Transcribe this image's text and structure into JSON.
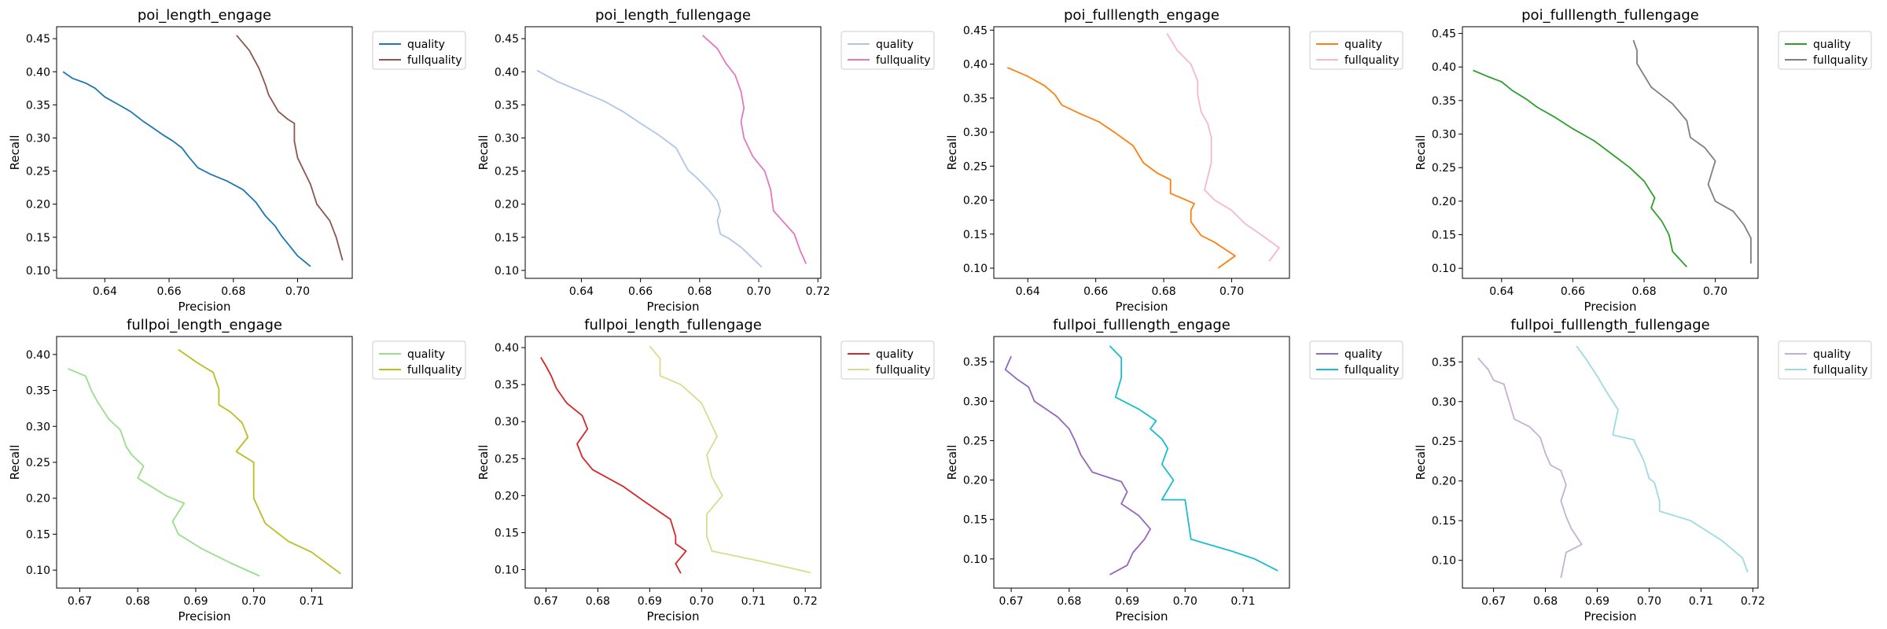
{
  "figure": {
    "background": "#ffffff"
  },
  "chart_data": [
    {
      "type": "line",
      "title": "poi_length_engage",
      "xlabel": "Precision",
      "ylabel": "Recall",
      "xlim": [
        0.625,
        0.717
      ],
      "ylim": [
        0.088,
        0.468
      ],
      "xticks": [
        0.64,
        0.66,
        0.68,
        0.7
      ],
      "xtick_labels": [
        "0.64",
        "0.66",
        "0.68",
        "0.70"
      ],
      "yticks": [
        0.1,
        0.15,
        0.2,
        0.25,
        0.3,
        0.35,
        0.4,
        0.45
      ],
      "ytick_labels": [
        "0.10",
        "0.15",
        "0.20",
        "0.25",
        "0.30",
        "0.35",
        "0.40",
        "0.45"
      ],
      "legend_position": "outside-top-right",
      "series": [
        {
          "name": "quality",
          "color": "#1f77b4",
          "x": [
            0.627,
            0.63,
            0.634,
            0.637,
            0.64,
            0.644,
            0.648,
            0.652,
            0.655,
            0.658,
            0.661,
            0.664,
            0.666,
            0.669,
            0.673,
            0.678,
            0.683,
            0.687,
            0.69,
            0.693,
            0.695,
            0.697,
            0.7,
            0.704
          ],
          "y": [
            0.4,
            0.39,
            0.383,
            0.375,
            0.362,
            0.351,
            0.34,
            0.325,
            0.315,
            0.305,
            0.296,
            0.285,
            0.272,
            0.255,
            0.245,
            0.235,
            0.222,
            0.203,
            0.182,
            0.167,
            0.152,
            0.14,
            0.122,
            0.106
          ]
        },
        {
          "name": "fullquality",
          "color": "#8c564b",
          "x": [
            0.681,
            0.685,
            0.688,
            0.69,
            0.691,
            0.694,
            0.697,
            0.699,
            0.699,
            0.7,
            0.702,
            0.704,
            0.706,
            0.71,
            0.712,
            0.714
          ],
          "y": [
            0.455,
            0.432,
            0.405,
            0.38,
            0.365,
            0.34,
            0.328,
            0.322,
            0.295,
            0.27,
            0.25,
            0.23,
            0.2,
            0.175,
            0.15,
            0.115
          ]
        }
      ]
    },
    {
      "type": "line",
      "title": "poi_length_fullengage",
      "xlabel": "Precision",
      "ylabel": "Recall",
      "xlim": [
        0.621,
        0.721
      ],
      "ylim": [
        0.088,
        0.468
      ],
      "xticks": [
        0.64,
        0.66,
        0.68,
        0.7,
        0.72
      ],
      "xtick_labels": [
        "0.64",
        "0.66",
        "0.68",
        "0.70",
        "0.72"
      ],
      "yticks": [
        0.1,
        0.15,
        0.2,
        0.25,
        0.3,
        0.35,
        0.4,
        0.45
      ],
      "ytick_labels": [
        "0.10",
        "0.15",
        "0.20",
        "0.25",
        "0.30",
        "0.35",
        "0.40",
        "0.45"
      ],
      "legend_position": "outside-top-right",
      "series": [
        {
          "name": "quality",
          "color": "#aec7e8",
          "x": [
            0.625,
            0.632,
            0.64,
            0.648,
            0.654,
            0.66,
            0.666,
            0.672,
            0.676,
            0.679,
            0.683,
            0.686,
            0.687,
            0.686,
            0.687,
            0.69,
            0.694,
            0.698,
            0.701
          ],
          "y": [
            0.402,
            0.385,
            0.37,
            0.355,
            0.34,
            0.322,
            0.305,
            0.285,
            0.252,
            0.24,
            0.222,
            0.205,
            0.19,
            0.175,
            0.155,
            0.148,
            0.135,
            0.118,
            0.105
          ]
        },
        {
          "name": "fullquality",
          "color": "#e377c2",
          "x": [
            0.681,
            0.686,
            0.689,
            0.692,
            0.694,
            0.695,
            0.694,
            0.695,
            0.698,
            0.702,
            0.704,
            0.705,
            0.708,
            0.712,
            0.714,
            0.716
          ],
          "y": [
            0.455,
            0.435,
            0.412,
            0.395,
            0.37,
            0.345,
            0.325,
            0.3,
            0.272,
            0.25,
            0.222,
            0.19,
            0.175,
            0.155,
            0.13,
            0.11
          ]
        }
      ]
    },
    {
      "type": "line",
      "title": "poi_fulllength_engage",
      "xlabel": "Precision",
      "ylabel": "Recall",
      "xlim": [
        0.63,
        0.717
      ],
      "ylim": [
        0.085,
        0.455
      ],
      "xticks": [
        0.64,
        0.66,
        0.68,
        0.7
      ],
      "xtick_labels": [
        "0.64",
        "0.66",
        "0.68",
        "0.70"
      ],
      "yticks": [
        0.1,
        0.15,
        0.2,
        0.25,
        0.3,
        0.35,
        0.4,
        0.45
      ],
      "ytick_labels": [
        "0.10",
        "0.15",
        "0.20",
        "0.25",
        "0.30",
        "0.35",
        "0.40",
        "0.45"
      ],
      "legend_position": "outside-top-right",
      "series": [
        {
          "name": "quality",
          "color": "#ff7f0e",
          "x": [
            0.634,
            0.64,
            0.645,
            0.648,
            0.65,
            0.655,
            0.661,
            0.666,
            0.671,
            0.674,
            0.678,
            0.682,
            0.682,
            0.689,
            0.688,
            0.688,
            0.691,
            0.695,
            0.701,
            0.696
          ],
          "y": [
            0.395,
            0.382,
            0.368,
            0.355,
            0.34,
            0.328,
            0.315,
            0.298,
            0.28,
            0.255,
            0.24,
            0.23,
            0.21,
            0.195,
            0.185,
            0.168,
            0.148,
            0.138,
            0.118,
            0.1
          ]
        },
        {
          "name": "fullquality",
          "color": "#f7b6d2",
          "x": [
            0.681,
            0.684,
            0.688,
            0.69,
            0.69,
            0.691,
            0.693,
            0.694,
            0.694,
            0.692,
            0.695,
            0.7,
            0.704,
            0.709,
            0.714,
            0.711
          ],
          "y": [
            0.445,
            0.42,
            0.4,
            0.375,
            0.355,
            0.33,
            0.312,
            0.292,
            0.255,
            0.215,
            0.2,
            0.185,
            0.165,
            0.148,
            0.13,
            0.11
          ]
        }
      ]
    },
    {
      "type": "line",
      "title": "poi_fulllength_fullengage",
      "xlabel": "Precision",
      "ylabel": "Recall",
      "xlim": [
        0.629,
        0.712
      ],
      "ylim": [
        0.085,
        0.46
      ],
      "xticks": [
        0.64,
        0.66,
        0.68,
        0.7
      ],
      "xtick_labels": [
        "0.64",
        "0.66",
        "0.68",
        "0.70"
      ],
      "yticks": [
        0.1,
        0.15,
        0.2,
        0.25,
        0.3,
        0.35,
        0.4,
        0.45
      ],
      "ytick_labels": [
        "0.10",
        "0.15",
        "0.20",
        "0.25",
        "0.30",
        "0.35",
        "0.40",
        "0.45"
      ],
      "legend_position": "outside-top-right",
      "series": [
        {
          "name": "quality",
          "color": "#2ca02c",
          "x": [
            0.632,
            0.636,
            0.64,
            0.643,
            0.647,
            0.65,
            0.655,
            0.66,
            0.666,
            0.671,
            0.676,
            0.68,
            0.683,
            0.682,
            0.685,
            0.687,
            0.688,
            0.692
          ],
          "y": [
            0.395,
            0.386,
            0.378,
            0.365,
            0.352,
            0.34,
            0.325,
            0.308,
            0.29,
            0.27,
            0.25,
            0.23,
            0.205,
            0.19,
            0.17,
            0.15,
            0.125,
            0.102
          ]
        },
        {
          "name": "fullquality",
          "color": "#7f7f7f",
          "x": [
            0.677,
            0.678,
            0.678,
            0.682,
            0.688,
            0.692,
            0.693,
            0.697,
            0.7,
            0.698,
            0.7,
            0.705,
            0.708,
            0.71,
            0.71
          ],
          "y": [
            0.44,
            0.425,
            0.405,
            0.37,
            0.345,
            0.32,
            0.295,
            0.28,
            0.26,
            0.225,
            0.2,
            0.185,
            0.165,
            0.145,
            0.107
          ]
        }
      ]
    },
    {
      "type": "line",
      "title": "fullpoi_length_engage",
      "xlabel": "Precision",
      "ylabel": "Recall",
      "xlim": [
        0.666,
        0.717
      ],
      "ylim": [
        0.075,
        0.425
      ],
      "xticks": [
        0.67,
        0.68,
        0.69,
        0.7,
        0.71
      ],
      "xtick_labels": [
        "0.67",
        "0.68",
        "0.69",
        "0.70",
        "0.71"
      ],
      "yticks": [
        0.1,
        0.15,
        0.2,
        0.25,
        0.3,
        0.35,
        0.4
      ],
      "ytick_labels": [
        "0.10",
        "0.15",
        "0.20",
        "0.25",
        "0.30",
        "0.35",
        "0.40"
      ],
      "legend_position": "outside-top-right",
      "series": [
        {
          "name": "quality",
          "color": "#98df8a",
          "x": [
            0.668,
            0.671,
            0.672,
            0.673,
            0.675,
            0.677,
            0.678,
            0.679,
            0.681,
            0.68,
            0.682,
            0.685,
            0.688,
            0.686,
            0.687,
            0.691,
            0.696,
            0.701
          ],
          "y": [
            0.38,
            0.37,
            0.35,
            0.335,
            0.31,
            0.295,
            0.272,
            0.26,
            0.245,
            0.228,
            0.218,
            0.203,
            0.193,
            0.168,
            0.15,
            0.13,
            0.11,
            0.092
          ]
        },
        {
          "name": "fullquality",
          "color": "#bcbd22",
          "x": [
            0.687,
            0.69,
            0.693,
            0.694,
            0.694,
            0.696,
            0.698,
            0.699,
            0.697,
            0.7,
            0.7,
            0.7,
            0.702,
            0.706,
            0.71,
            0.715
          ],
          "y": [
            0.407,
            0.39,
            0.375,
            0.352,
            0.33,
            0.32,
            0.305,
            0.285,
            0.265,
            0.25,
            0.222,
            0.2,
            0.165,
            0.14,
            0.125,
            0.095
          ]
        }
      ]
    },
    {
      "type": "line",
      "title": "fullpoi_length_fullengage",
      "xlabel": "Precision",
      "ylabel": "Recall",
      "xlim": [
        0.666,
        0.723
      ],
      "ylim": [
        0.075,
        0.415
      ],
      "xticks": [
        0.67,
        0.68,
        0.69,
        0.7,
        0.71,
        0.72
      ],
      "xtick_labels": [
        "0.67",
        "0.68",
        "0.69",
        "0.70",
        "0.71",
        "0.72"
      ],
      "yticks": [
        0.1,
        0.15,
        0.2,
        0.25,
        0.3,
        0.35,
        0.4
      ],
      "ytick_labels": [
        "0.10",
        "0.15",
        "0.20",
        "0.25",
        "0.30",
        "0.35",
        "0.40"
      ],
      "legend_position": "outside-top-right",
      "series": [
        {
          "name": "quality",
          "color": "#d62728",
          "x": [
            0.669,
            0.67,
            0.671,
            0.672,
            0.674,
            0.677,
            0.678,
            0.676,
            0.677,
            0.679,
            0.685,
            0.689,
            0.694,
            0.695,
            0.695,
            0.697,
            0.695,
            0.696
          ],
          "y": [
            0.387,
            0.375,
            0.362,
            0.345,
            0.325,
            0.308,
            0.29,
            0.27,
            0.252,
            0.235,
            0.212,
            0.192,
            0.168,
            0.145,
            0.135,
            0.125,
            0.108,
            0.095
          ]
        },
        {
          "name": "fullquality",
          "color": "#dbdb8d",
          "x": [
            0.69,
            0.692,
            0.692,
            0.696,
            0.7,
            0.703,
            0.701,
            0.702,
            0.704,
            0.701,
            0.701,
            0.702,
            0.711,
            0.721
          ],
          "y": [
            0.402,
            0.385,
            0.362,
            0.35,
            0.325,
            0.28,
            0.255,
            0.225,
            0.2,
            0.175,
            0.145,
            0.125,
            0.112,
            0.096
          ]
        }
      ]
    },
    {
      "type": "line",
      "title": "fullpoi_fulllength_engage",
      "xlabel": "Precision",
      "ylabel": "Recall",
      "xlim": [
        0.667,
        0.718
      ],
      "ylim": [
        0.063,
        0.382
      ],
      "xticks": [
        0.67,
        0.68,
        0.69,
        0.7,
        0.71
      ],
      "xtick_labels": [
        "0.67",
        "0.68",
        "0.69",
        "0.70",
        "0.71"
      ],
      "yticks": [
        0.1,
        0.15,
        0.2,
        0.25,
        0.3,
        0.35
      ],
      "ytick_labels": [
        "0.10",
        "0.15",
        "0.20",
        "0.25",
        "0.30",
        "0.35"
      ],
      "legend_position": "outside-top-right",
      "series": [
        {
          "name": "quality",
          "color": "#9467bd",
          "x": [
            0.67,
            0.669,
            0.671,
            0.673,
            0.674,
            0.676,
            0.678,
            0.68,
            0.681,
            0.682,
            0.684,
            0.689,
            0.69,
            0.689,
            0.692,
            0.694,
            0.693,
            0.691,
            0.69,
            0.687
          ],
          "y": [
            0.357,
            0.34,
            0.328,
            0.318,
            0.3,
            0.29,
            0.28,
            0.265,
            0.25,
            0.232,
            0.21,
            0.198,
            0.185,
            0.17,
            0.155,
            0.138,
            0.125,
            0.108,
            0.092,
            0.08
          ]
        },
        {
          "name": "fullquality",
          "color": "#17becf",
          "x": [
            0.687,
            0.689,
            0.689,
            0.688,
            0.692,
            0.695,
            0.694,
            0.696,
            0.697,
            0.696,
            0.698,
            0.696,
            0.7,
            0.701,
            0.708,
            0.712,
            0.716
          ],
          "y": [
            0.37,
            0.355,
            0.33,
            0.305,
            0.29,
            0.275,
            0.265,
            0.252,
            0.24,
            0.22,
            0.2,
            0.175,
            0.175,
            0.125,
            0.11,
            0.1,
            0.085
          ]
        }
      ]
    },
    {
      "type": "line",
      "title": "fullpoi_fulllength_fullengage",
      "xlabel": "Precision",
      "ylabel": "Recall",
      "xlim": [
        0.664,
        0.721
      ],
      "ylim": [
        0.065,
        0.382
      ],
      "xticks": [
        0.67,
        0.68,
        0.69,
        0.7,
        0.71,
        0.72
      ],
      "xtick_labels": [
        "0.67",
        "0.68",
        "0.69",
        "0.70",
        "0.71",
        "0.72"
      ],
      "yticks": [
        0.1,
        0.15,
        0.2,
        0.25,
        0.3,
        0.35
      ],
      "ytick_labels": [
        "0.10",
        "0.15",
        "0.20",
        "0.25",
        "0.30",
        "0.35"
      ],
      "legend_position": "outside-top-right",
      "series": [
        {
          "name": "quality",
          "color": "#c5b0d5",
          "x": [
            0.667,
            0.669,
            0.67,
            0.672,
            0.673,
            0.674,
            0.677,
            0.679,
            0.68,
            0.681,
            0.683,
            0.684,
            0.683,
            0.684,
            0.685,
            0.687,
            0.684,
            0.683
          ],
          "y": [
            0.355,
            0.34,
            0.327,
            0.322,
            0.3,
            0.278,
            0.268,
            0.255,
            0.235,
            0.22,
            0.213,
            0.195,
            0.175,
            0.155,
            0.14,
            0.12,
            0.11,
            0.078
          ]
        },
        {
          "name": "fullquality",
          "color": "#9edae5",
          "x": [
            0.686,
            0.688,
            0.69,
            0.692,
            0.694,
            0.693,
            0.697,
            0.699,
            0.7,
            0.701,
            0.702,
            0.702,
            0.708,
            0.714,
            0.718,
            0.719
          ],
          "y": [
            0.37,
            0.352,
            0.332,
            0.31,
            0.29,
            0.258,
            0.252,
            0.225,
            0.203,
            0.198,
            0.175,
            0.162,
            0.15,
            0.125,
            0.103,
            0.085
          ]
        }
      ]
    }
  ]
}
